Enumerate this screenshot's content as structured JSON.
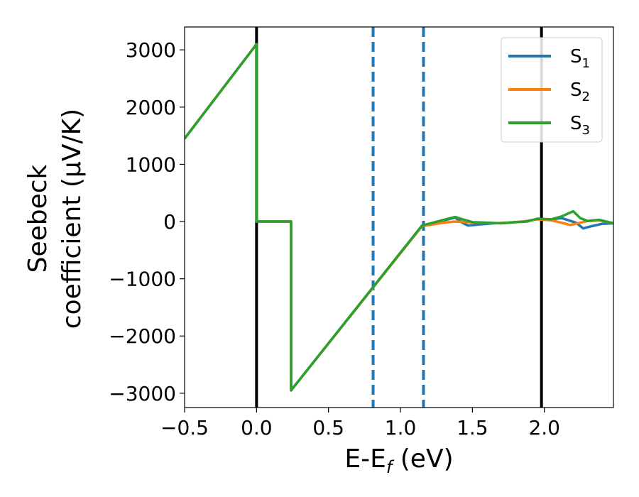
{
  "chart_data": {
    "type": "line",
    "xlabel": {
      "base": "E-E",
      "sub": "f",
      "suffix": " (eV)"
    },
    "ylabel": {
      "line1": "Seebeck",
      "line2": "coefficient  (μV/K)"
    },
    "xlim": [
      -0.5,
      2.48
    ],
    "ylim": [
      -3250,
      3400
    ],
    "x_ticks": [
      -0.5,
      0.0,
      0.5,
      1.0,
      1.5,
      2.0
    ],
    "x_tick_labels": [
      "−0.5",
      "0.0",
      "0.5",
      "1.0",
      "1.5",
      "2.0"
    ],
    "y_ticks": [
      -3000,
      -2000,
      -1000,
      0,
      1000,
      2000,
      3000
    ],
    "y_tick_labels": [
      "−3000",
      "−2000",
      "−1000",
      "0",
      "1000",
      "2000",
      "3000"
    ],
    "grid": false,
    "legend_position": "top-right",
    "series": [
      {
        "name": {
          "base": "S",
          "sub": "1"
        },
        "color": "#1f77b4",
        "points": [
          [
            -0.5,
            1450
          ],
          [
            0.0,
            3100
          ],
          [
            0.0,
            0
          ],
          [
            0.24,
            0
          ],
          [
            0.24,
            -2950
          ],
          [
            1.15,
            -70
          ],
          [
            1.3,
            20
          ],
          [
            1.38,
            70
          ],
          [
            1.43,
            -20
          ],
          [
            1.47,
            -70
          ],
          [
            1.55,
            -50
          ],
          [
            1.65,
            -30
          ],
          [
            1.75,
            -20
          ],
          [
            1.85,
            0
          ],
          [
            1.95,
            40
          ],
          [
            2.05,
            40
          ],
          [
            2.12,
            60
          ],
          [
            2.17,
            20
          ],
          [
            2.22,
            -20
          ],
          [
            2.27,
            -120
          ],
          [
            2.33,
            -80
          ],
          [
            2.4,
            -40
          ],
          [
            2.48,
            -30
          ]
        ]
      },
      {
        "name": {
          "base": "S",
          "sub": "2"
        },
        "color": "#ff7f0e",
        "points": [
          [
            -0.5,
            1450
          ],
          [
            0.0,
            3100
          ],
          [
            0.0,
            0
          ],
          [
            0.24,
            0
          ],
          [
            0.24,
            -2950
          ],
          [
            1.15,
            -80
          ],
          [
            1.3,
            -20
          ],
          [
            1.38,
            0
          ],
          [
            1.45,
            -10
          ],
          [
            1.55,
            -20
          ],
          [
            1.65,
            -30
          ],
          [
            1.75,
            -20
          ],
          [
            1.85,
            0
          ],
          [
            1.95,
            40
          ],
          [
            2.05,
            20
          ],
          [
            2.12,
            -20
          ],
          [
            2.18,
            -60
          ],
          [
            2.25,
            -20
          ],
          [
            2.3,
            10
          ],
          [
            2.38,
            20
          ],
          [
            2.48,
            -30
          ]
        ]
      },
      {
        "name": {
          "base": "S",
          "sub": "3"
        },
        "color": "#2ca02c",
        "points": [
          [
            -0.5,
            1450
          ],
          [
            0.0,
            3100
          ],
          [
            0.0,
            0
          ],
          [
            0.24,
            0
          ],
          [
            0.24,
            -2950
          ],
          [
            1.15,
            -70
          ],
          [
            1.3,
            30
          ],
          [
            1.38,
            80
          ],
          [
            1.43,
            40
          ],
          [
            1.5,
            -10
          ],
          [
            1.6,
            -20
          ],
          [
            1.7,
            -30
          ],
          [
            1.8,
            -10
          ],
          [
            1.88,
            0
          ],
          [
            1.95,
            50
          ],
          [
            2.05,
            40
          ],
          [
            2.12,
            90
          ],
          [
            2.2,
            180
          ],
          [
            2.25,
            60
          ],
          [
            2.3,
            10
          ],
          [
            2.38,
            30
          ],
          [
            2.48,
            -30
          ]
        ]
      }
    ],
    "reference_lines": [
      {
        "x": 0.0,
        "color": "#000000",
        "style": "solid"
      },
      {
        "x": 1.98,
        "color": "#000000",
        "style": "solid"
      },
      {
        "x": 0.81,
        "color": "#1f77b4",
        "style": "dashed"
      },
      {
        "x": 1.16,
        "color": "#1f77b4",
        "style": "dashed"
      }
    ]
  }
}
